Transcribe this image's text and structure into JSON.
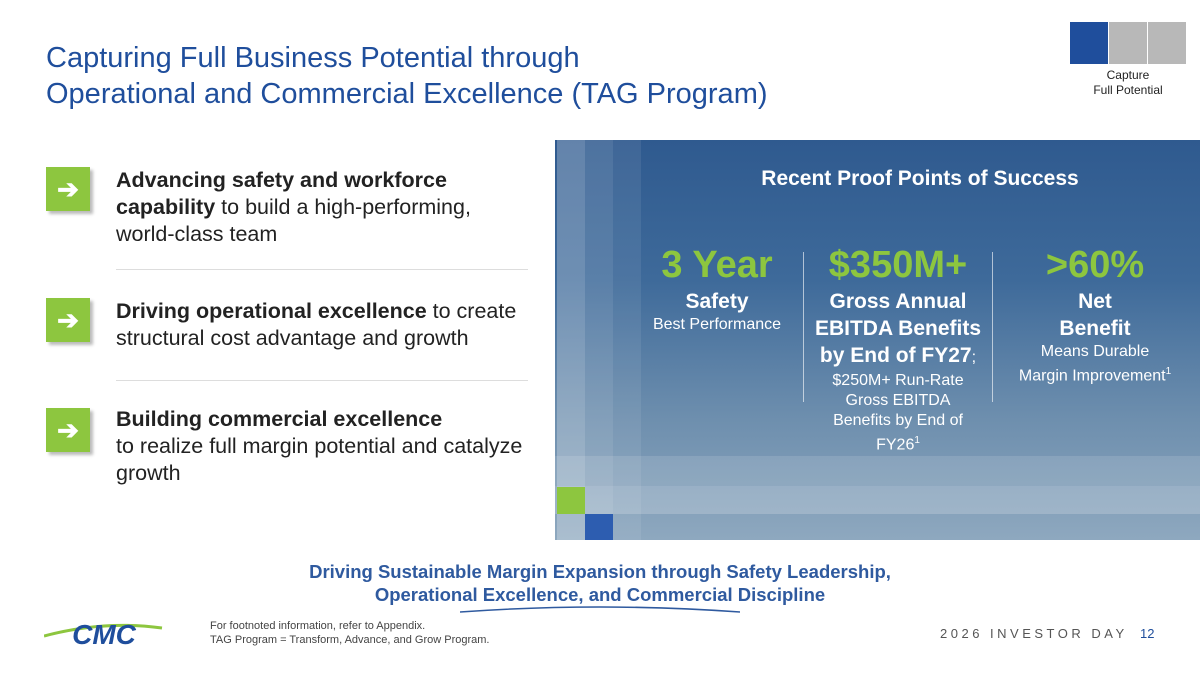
{
  "header": {
    "title_lines": [
      "Capturing Full Business Potential through",
      "Operational and Commercial Excellence (TAG Program)"
    ],
    "badge": [
      "Capture",
      "Full Potential"
    ]
  },
  "bullets": [
    {
      "bold": "Advancing safety and workforce capability",
      "text": " to build a high-performing, world-class team"
    },
    {
      "bold": "Driving operational excellence",
      "text": " to create structural cost advantage and growth"
    },
    {
      "bold": "Building commercial excellence",
      "text": "to realize full margin potential and catalyze growth"
    }
  ],
  "panel": {
    "title": "Recent Proof Points of Success",
    "stats": [
      {
        "figure": "3 Year",
        "heading": "Safety",
        "detail": "Best Performance"
      },
      {
        "figure": "$350M+",
        "heading": "Gross Annual EBITDA Benefits by End of FY27",
        "separator": ";",
        "detail": "$250M+ Run-Rate Gross EBITDA Benefits by End of FY26",
        "footnote": "1"
      },
      {
        "figure": ">60%",
        "heading": "Net Benefit",
        "detail": "Means Durable Margin Improvement",
        "footnote": "1"
      }
    ]
  },
  "tagline": [
    "Driving Sustainable Margin Expansion through Safety Leadership,",
    "Operational Excellence, and Commercial Discipline"
  ],
  "footer": {
    "notes": [
      "For footnoted information, refer to Appendix.",
      "TAG Program = Transform, Advance, and Grow Program."
    ],
    "logo": "CMC",
    "event": "2026 INVESTOR DAY",
    "page": "12"
  }
}
